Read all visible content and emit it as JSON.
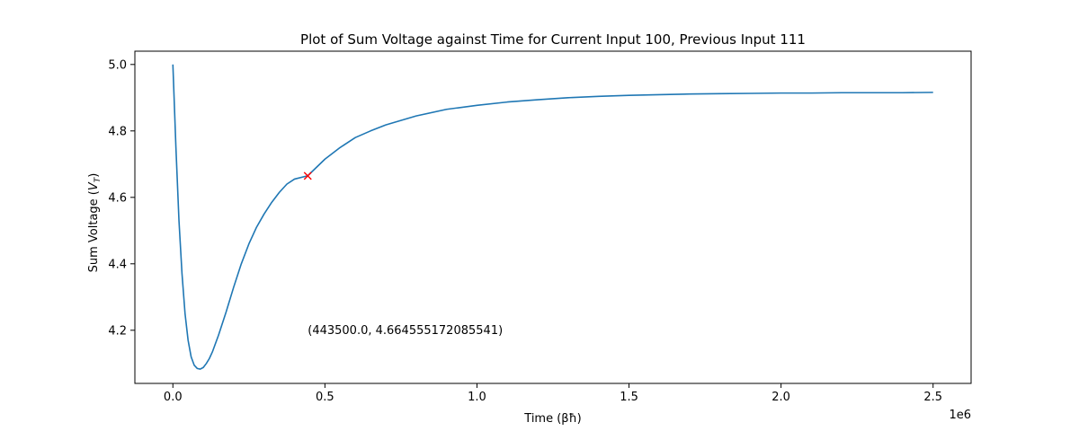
{
  "chart_data": {
    "type": "line",
    "title": "Plot of Sum Voltage against Time for Current Input 100, Previous Input 111",
    "xlabel": "Time (βħ)",
    "ylabel": "Sum Voltage (V_T)",
    "ylabel_prefix": "Sum Voltage (",
    "ylabel_var": "V",
    "ylabel_sub": "T",
    "ylabel_suffix": ")",
    "x_offset_text": "1e6",
    "xlim": [
      -125000,
      2625000
    ],
    "ylim": [
      4.04,
      5.04
    ],
    "x_ticks": [
      {
        "value": 0,
        "label": "0.0"
      },
      {
        "value": 500000,
        "label": "0.5"
      },
      {
        "value": 1000000,
        "label": "1.0"
      },
      {
        "value": 1500000,
        "label": "1.5"
      },
      {
        "value": 2000000,
        "label": "2.0"
      },
      {
        "value": 2500000,
        "label": "2.5"
      }
    ],
    "y_ticks": [
      {
        "value": 4.2,
        "label": "4.2"
      },
      {
        "value": 4.4,
        "label": "4.4"
      },
      {
        "value": 4.6,
        "label": "4.6"
      },
      {
        "value": 4.8,
        "label": "4.8"
      },
      {
        "value": 5.0,
        "label": "5.0"
      }
    ],
    "grid": false,
    "series": [
      {
        "color": "#1f77b4",
        "x": [
          0,
          10000,
          20000,
          30000,
          40000,
          50000,
          60000,
          70000,
          80000,
          90000,
          100000,
          110000,
          120000,
          130000,
          150000,
          175000,
          200000,
          225000,
          250000,
          275000,
          300000,
          325000,
          350000,
          375000,
          400000,
          443500,
          500000,
          550000,
          600000,
          650000,
          700000,
          800000,
          900000,
          1000000,
          1100000,
          1200000,
          1300000,
          1400000,
          1500000,
          1600000,
          1700000,
          1800000,
          1900000,
          2000000,
          2100000,
          2200000,
          2300000,
          2400000,
          2500000
        ],
        "y": [
          5.0,
          4.75,
          4.53,
          4.37,
          4.25,
          4.17,
          4.12,
          4.095,
          4.085,
          4.083,
          4.088,
          4.1,
          4.115,
          4.135,
          4.185,
          4.255,
          4.33,
          4.4,
          4.46,
          4.51,
          4.55,
          4.585,
          4.615,
          4.64,
          4.655,
          4.665,
          4.715,
          4.75,
          4.78,
          4.8,
          4.818,
          4.845,
          4.865,
          4.877,
          4.887,
          4.894,
          4.9,
          4.904,
          4.907,
          4.909,
          4.911,
          4.912,
          4.913,
          4.914,
          4.914,
          4.915,
          4.915,
          4.915,
          4.916
        ]
      }
    ],
    "marker_point": {
      "x": 443500,
      "y": 4.664555172085541,
      "color": "#ff0000"
    },
    "annotation": {
      "text": "(443500.0, 4.664555172085541)",
      "x": 443500,
      "y": 4.2
    }
  }
}
